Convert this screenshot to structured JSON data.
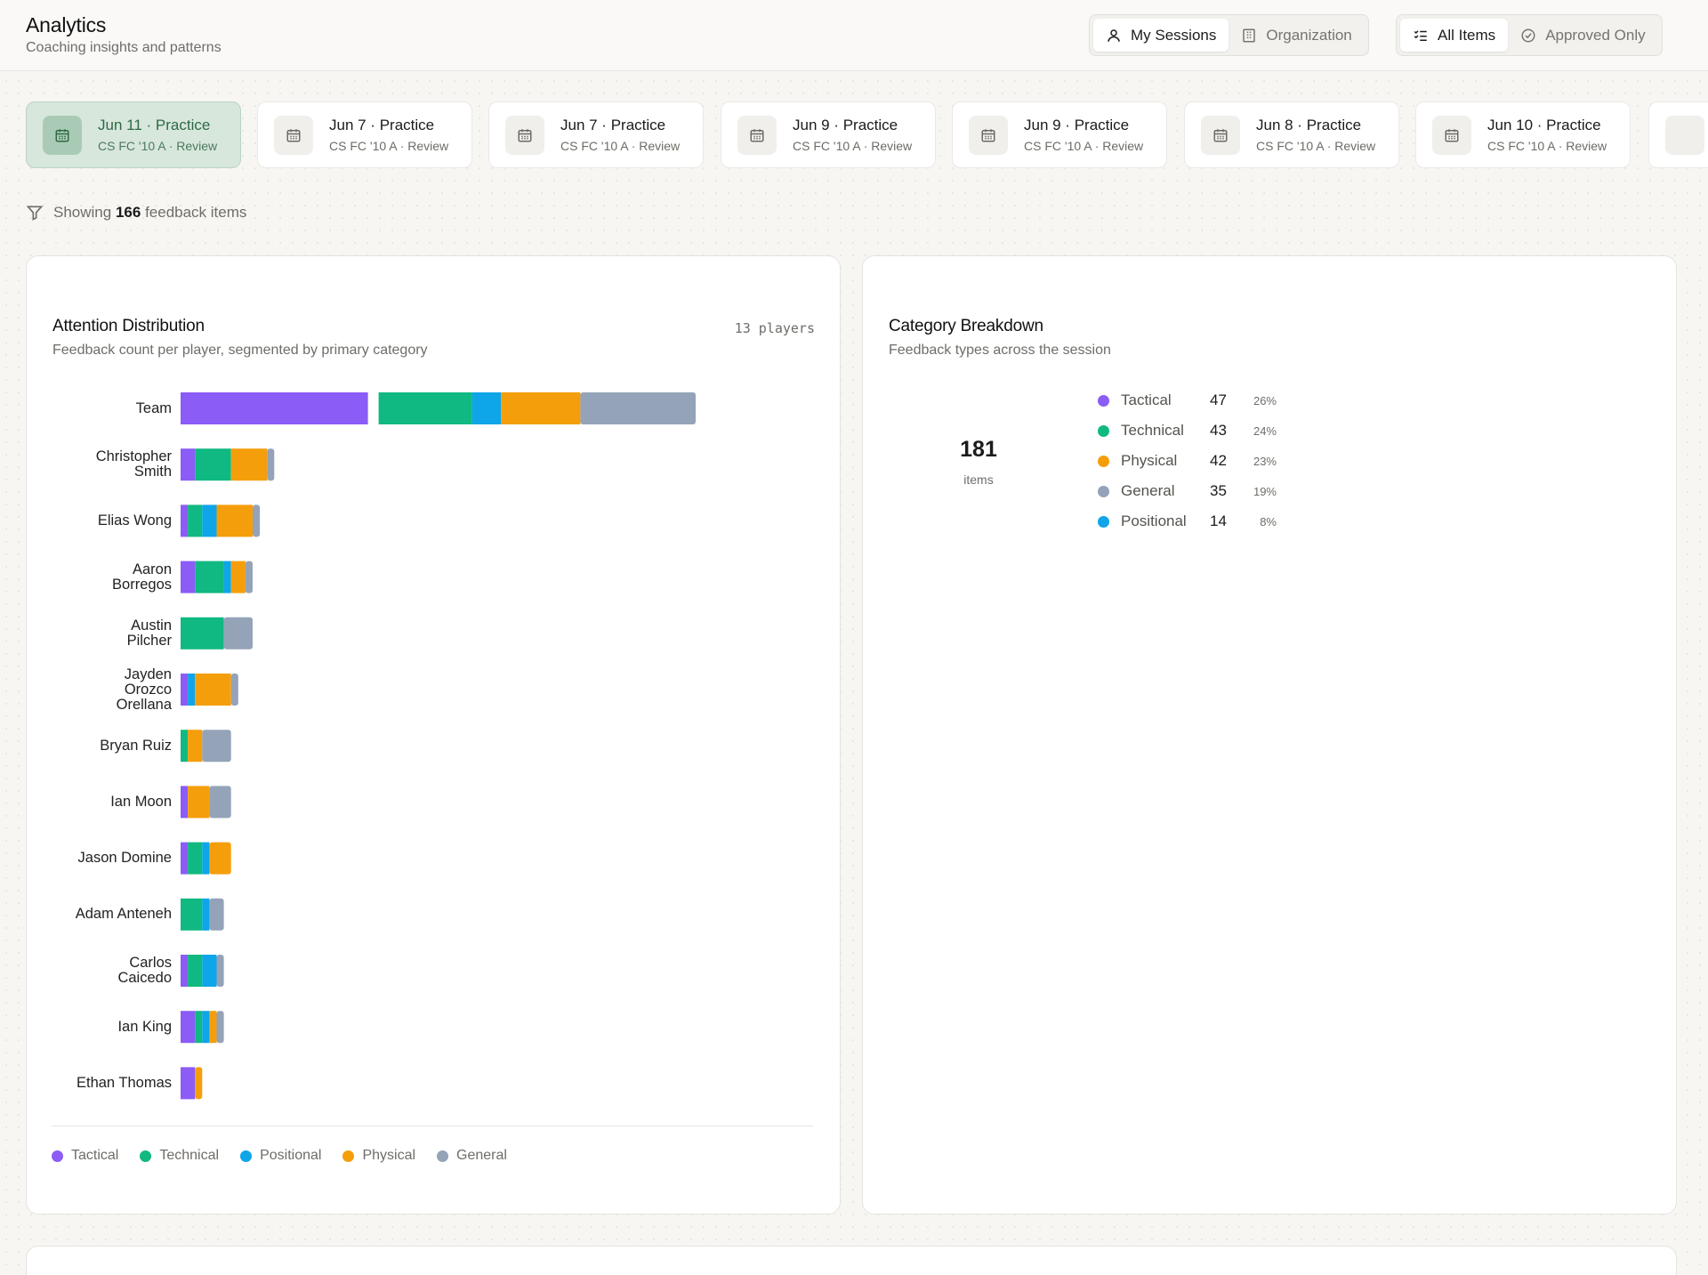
{
  "header": {
    "title": "Analytics",
    "subtitle": "Coaching insights and patterns",
    "scope_toggle": [
      "My Sessions",
      "Organization"
    ],
    "scope_active": 0,
    "filter_toggle": [
      "All Items",
      "Approved Only"
    ],
    "filter_active": 0
  },
  "sessions": [
    {
      "title": "Jun 11 · Practice",
      "sub": "CS FC '10 A · Review",
      "active": true
    },
    {
      "title": "Jun 7 · Practice",
      "sub": "CS FC '10 A · Review",
      "active": false
    },
    {
      "title": "Jun 7 · Practice",
      "sub": "CS FC '10 A · Review",
      "active": false
    },
    {
      "title": "Jun 9 · Practice",
      "sub": "CS FC '10 A · Review",
      "active": false
    },
    {
      "title": "Jun 9 · Practice",
      "sub": "CS FC '10 A · Review",
      "active": false
    },
    {
      "title": "Jun 8 · Practice",
      "sub": "CS FC '10 A · Review",
      "active": false
    },
    {
      "title": "Jun 10 · Practice",
      "sub": "CS FC '10 A · Review",
      "active": false
    }
  ],
  "filter_line": {
    "prefix": "Showing",
    "count": "166",
    "suffix": "feedback items"
  },
  "colors": {
    "Tactical": "#8b5cf6",
    "Technical": "#10b981",
    "Positional": "#0ea5e9",
    "Physical": "#f59e0b",
    "General": "#94a3b8"
  },
  "attention": {
    "title": "Attention Distribution",
    "subtitle": "Feedback count per player, segmented by primary category",
    "players_label": "13 players",
    "legend": [
      "Tactical",
      "Technical",
      "Positional",
      "Physical",
      "General"
    ]
  },
  "chart_data": [
    {
      "type": "bar",
      "orientation": "horizontal",
      "stacked": true,
      "title": "Attention Distribution",
      "categories": [
        "Team",
        "Christopher Smith",
        "Elias Wong",
        "Aaron Borregos",
        "Austin Pilcher",
        "Jayden Orozco Orellana",
        "Bryan Ruiz",
        "Ian Moon",
        "Jason Domine",
        "Adam Anteneh",
        "Carlos Caicedo",
        "Ian King",
        "Ethan Thomas"
      ],
      "series": [
        {
          "name": "Tactical",
          "values": [
            26,
            2,
            1,
            2,
            0,
            1,
            0,
            1,
            1,
            0,
            1,
            2,
            2
          ]
        },
        {
          "name": "Technical",
          "values": [
            13,
            5,
            2,
            4,
            6,
            0,
            1,
            0,
            2,
            3,
            2,
            1,
            0
          ]
        },
        {
          "name": "Positional",
          "values": [
            4,
            0,
            2,
            1,
            0,
            1,
            0,
            0,
            1,
            1,
            2,
            1,
            0
          ]
        },
        {
          "name": "Physical",
          "values": [
            11,
            5,
            5,
            2,
            0,
            5,
            2,
            3,
            3,
            0,
            0,
            1,
            1
          ]
        },
        {
          "name": "General",
          "values": [
            16,
            1,
            1,
            1,
            4,
            1,
            4,
            3,
            0,
            2,
            1,
            1,
            0
          ]
        }
      ]
    },
    {
      "type": "pie",
      "title": "Category Breakdown",
      "total": 181,
      "categories": [
        "Tactical",
        "Technical",
        "Physical",
        "General",
        "Positional"
      ],
      "values": [
        47,
        43,
        42,
        35,
        14
      ],
      "percents": [
        "26%",
        "24%",
        "23%",
        "19%",
        "8%"
      ]
    }
  ],
  "breakdown": {
    "title": "Category Breakdown",
    "subtitle": "Feedback types across the session",
    "total": "181",
    "total_label": "items",
    "rows": [
      {
        "name": "Tactical",
        "count": "47",
        "pct": "26%"
      },
      {
        "name": "Technical",
        "count": "43",
        "pct": "24%"
      },
      {
        "name": "Physical",
        "count": "42",
        "pct": "23%"
      },
      {
        "name": "General",
        "count": "35",
        "pct": "19%"
      },
      {
        "name": "Positional",
        "count": "14",
        "pct": "8%"
      }
    ]
  }
}
